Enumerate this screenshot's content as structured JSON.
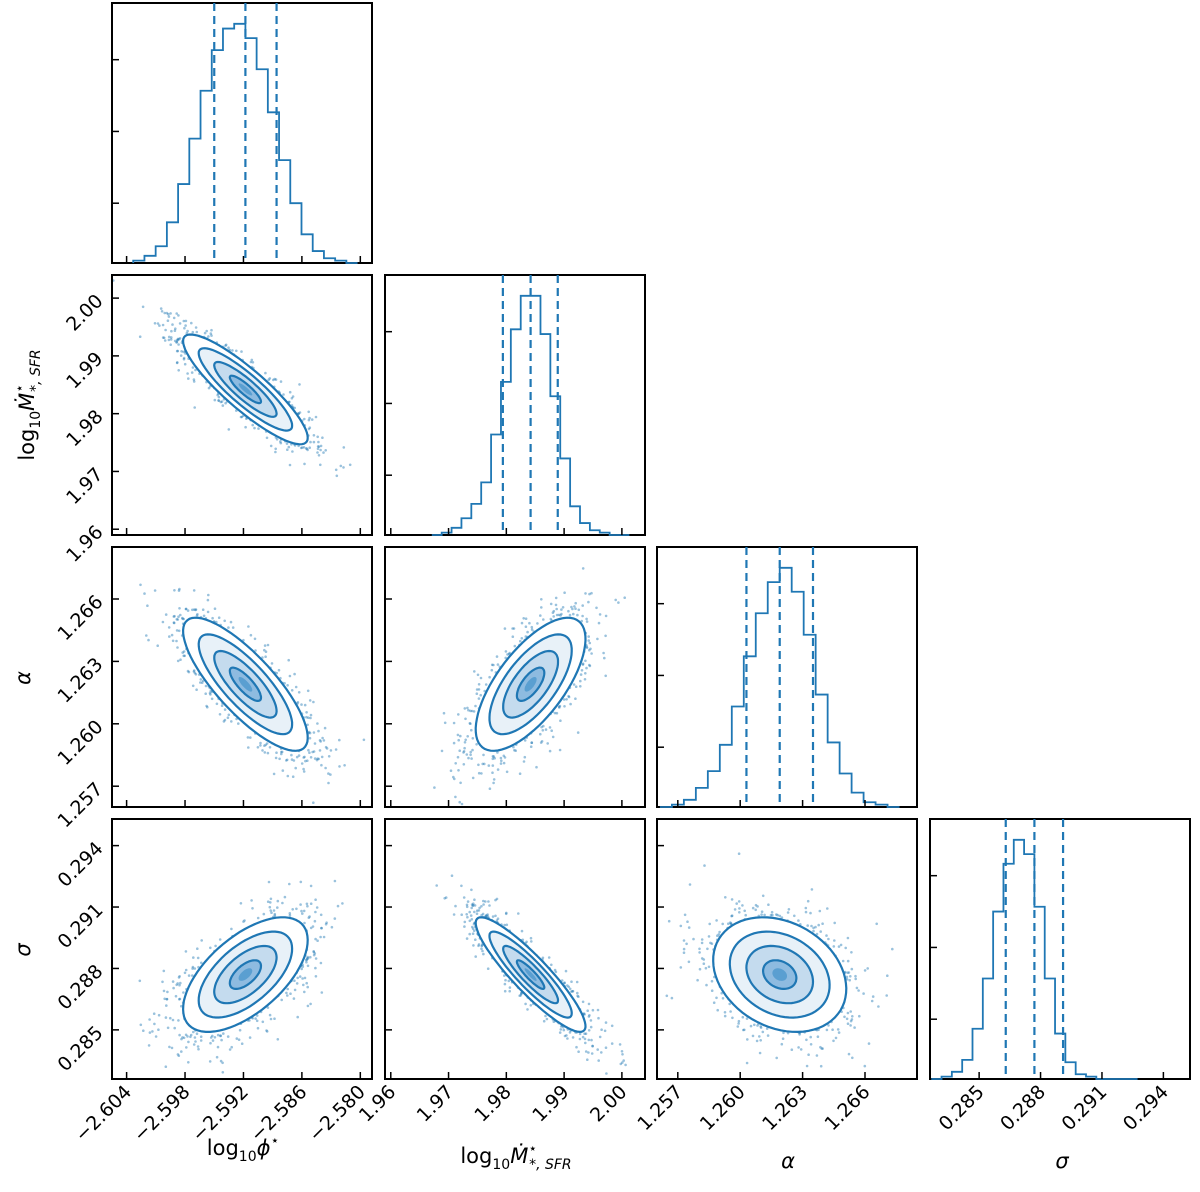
{
  "chart_data": {
    "type": "corner",
    "color": "#1f77b4",
    "parameters": [
      {
        "key": "log_phi",
        "label": "log10ϕ*",
        "ticks": [
          -2.604,
          -2.598,
          -2.592,
          -2.586,
          -2.58
        ],
        "tick_labels": [
          "−2.604",
          "−2.598",
          "−2.592",
          "−2.586",
          "−2.580"
        ],
        "range": [
          -2.6055,
          -2.5788
        ],
        "median": -2.5918,
        "q16": -2.595,
        "q84": -2.5886,
        "hist": [
          0.01,
          0.03,
          0.07,
          0.17,
          0.33,
          0.52,
          0.72,
          0.89,
          0.98,
          1.0,
          0.94,
          0.81,
          0.63,
          0.43,
          0.25,
          0.12,
          0.05,
          0.02,
          0.01,
          0.0
        ]
      },
      {
        "key": "log_mdot",
        "label": "log10Ṁ*,SFR*",
        "ticks": [
          1.96,
          1.97,
          1.98,
          1.99,
          2.0
        ],
        "tick_labels": [
          "1.96",
          "1.97",
          "1.98",
          "1.99",
          "2.00"
        ],
        "range": [
          1.959,
          2.004
        ],
        "median": 1.9842,
        "q16": 1.9794,
        "q84": 1.9889,
        "hist": [
          0.0,
          0.01,
          0.03,
          0.07,
          0.13,
          0.22,
          0.42,
          0.64,
          0.86,
          1.0,
          1.0,
          0.84,
          0.58,
          0.32,
          0.12,
          0.05,
          0.02,
          0.01,
          0.0,
          0.0
        ]
      },
      {
        "key": "alpha",
        "label": "α",
        "ticks": [
          1.257,
          1.26,
          1.263,
          1.266
        ],
        "tick_labels": [
          "1.257",
          "1.260",
          "1.263",
          "1.266"
        ],
        "range": [
          1.256,
          1.2685
        ],
        "median": 1.2619,
        "q16": 1.2603,
        "q84": 1.2635,
        "hist": [
          0.0,
          0.01,
          0.03,
          0.08,
          0.15,
          0.26,
          0.42,
          0.63,
          0.81,
          0.94,
          1.0,
          0.9,
          0.72,
          0.47,
          0.27,
          0.14,
          0.06,
          0.02,
          0.01,
          0.0
        ]
      },
      {
        "key": "sigma",
        "label": "σ",
        "ticks": [
          0.285,
          0.288,
          0.291,
          0.294
        ],
        "tick_labels": [
          "0.285",
          "0.288",
          "0.291",
          "0.294"
        ],
        "range": [
          0.2826,
          0.2953
        ],
        "median": 0.2877,
        "q16": 0.2863,
        "q84": 0.2891,
        "hist": [
          0.0,
          0.01,
          0.03,
          0.08,
          0.21,
          0.42,
          0.7,
          0.9,
          1.0,
          0.94,
          0.72,
          0.42,
          0.19,
          0.07,
          0.02,
          0.01,
          0.0,
          0.0,
          0.0,
          0.0
        ]
      }
    ],
    "correlations": [
      {
        "i": 1,
        "j": 0,
        "rho": -0.88
      },
      {
        "i": 2,
        "j": 0,
        "rho": -0.8
      },
      {
        "i": 2,
        "j": 1,
        "rho": 0.68
      },
      {
        "i": 3,
        "j": 0,
        "rho": 0.6
      },
      {
        "i": 3,
        "j": 1,
        "rho": -0.9
      },
      {
        "i": 3,
        "j": 2,
        "rho": -0.25
      }
    ],
    "quantile_lines": "dashed lines at 16th, 50th, 84th percentiles",
    "contour_levels_sigma": [
      0.5,
      1.0,
      1.5,
      2.0
    ]
  }
}
